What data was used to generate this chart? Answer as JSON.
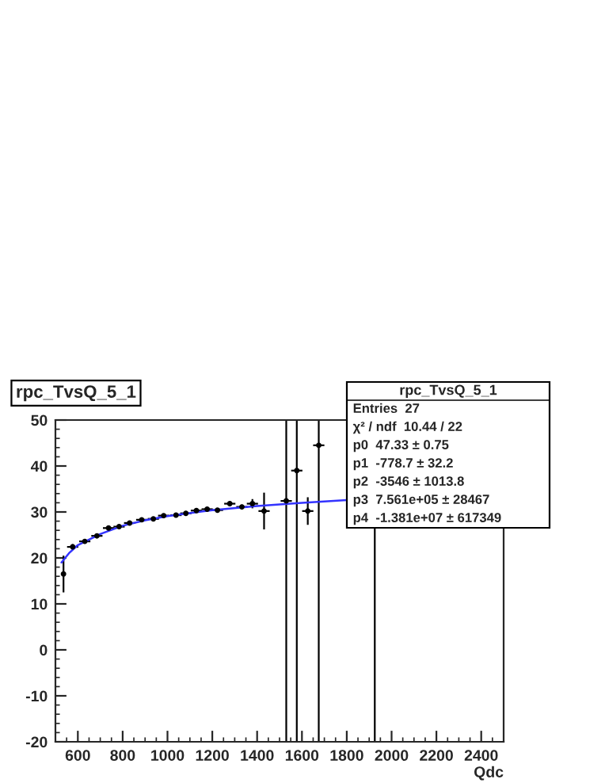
{
  "chart_data": {
    "type": "scatter",
    "title": "rpc_TvsQ_5_1",
    "xlabel": "Qdc",
    "xlim": [
      500,
      2500
    ],
    "ylim": [
      -20,
      50
    ],
    "xticks": [
      600,
      800,
      1000,
      1200,
      1400,
      1600,
      1800,
      2000,
      2200,
      2400
    ],
    "yticks": [
      -20,
      -10,
      0,
      10,
      20,
      30,
      40,
      50
    ],
    "marker": "circle",
    "grid": false,
    "series": [
      {
        "color": "#000000",
        "x": [
          536,
          577,
          631,
          685,
          737,
          784,
          831,
          885,
          937,
          983,
          1038,
          1082,
          1129,
          1177,
          1223,
          1278,
          1332,
          1379,
          1431,
          1530,
          1577,
          1626,
          1675
        ],
        "values": [
          16.5,
          22.4,
          23.6,
          24.8,
          26.5,
          26.8,
          27.6,
          28.3,
          28.5,
          29.2,
          29.3,
          29.7,
          30.3,
          30.6,
          30.4,
          31.8,
          31.1,
          31.8,
          30.2,
          32.4,
          39,
          30.2,
          44.5
        ],
        "errors": [
          4,
          0.6,
          0.4,
          0.4,
          0.3,
          0.3,
          0.3,
          0.3,
          0.3,
          0.3,
          0.3,
          0.3,
          0.4,
          0.4,
          0.4,
          0.5,
          0.5,
          1,
          4,
          [
            -20,
            50
          ],
          [
            -20,
            50
          ],
          3,
          [
            -20,
            50
          ]
        ],
        "xerrors": [
          null,
          25,
          25,
          25,
          25,
          25,
          25,
          25,
          25,
          25,
          25,
          25,
          25,
          25,
          25,
          25,
          25,
          25,
          25,
          25,
          25,
          25,
          25
        ]
      },
      {
        "type": "line",
        "marker": "none",
        "color": "#3333ff",
        "x": [
          527,
          560,
          600,
          700,
          800,
          900,
          1000,
          1200,
          1400,
          1600,
          1800
        ],
        "values": [
          19,
          21,
          22.8,
          25.2,
          27,
          28.2,
          29.1,
          30.4,
          31.3,
          32,
          32.6
        ]
      }
    ],
    "ref_lines": [
      {
        "axis": "x",
        "value": 1925,
        "color": "#000000"
      }
    ],
    "annotations": [
      "rpc_TvsQ_5_1",
      "Entries  27",
      "χ² / ndf  10.44 / 22",
      "p0  47.33 ± 0.75",
      "p1  -778.7 ± 32.2",
      "p2  -3546 ± 1013.8",
      "p3  7.561e+05 ± 28467",
      "p4  -1.381e+07 ± 617349"
    ]
  }
}
